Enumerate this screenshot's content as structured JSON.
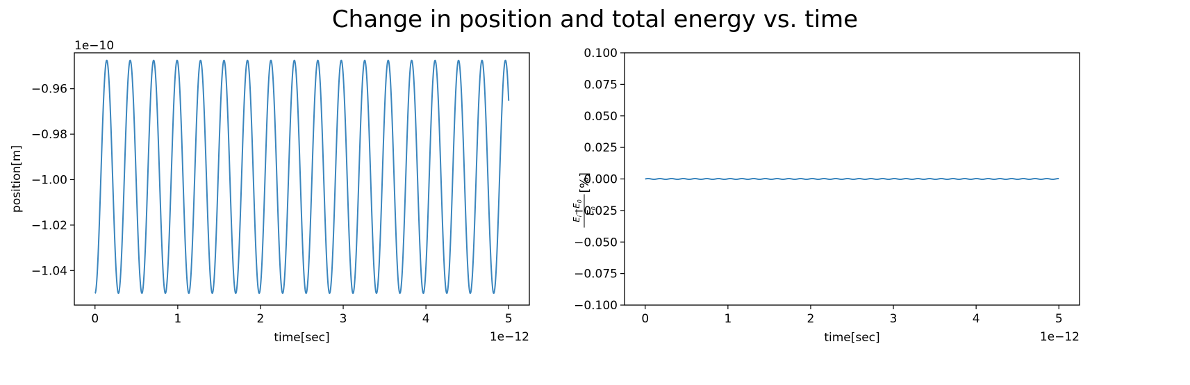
{
  "figure": {
    "title": "Change in position and total energy vs. time"
  },
  "chart_data": [
    {
      "type": "line",
      "title": "",
      "xlabel": "time[sec]",
      "ylabel": "position[m]",
      "x_offset_label": "1e−12",
      "y_offset_label": "1e−10",
      "xlim": [
        -0.25,
        5.25
      ],
      "ylim": [
        -1.0552,
        -0.9442
      ],
      "xticks": [
        0,
        1,
        2,
        3,
        4,
        5
      ],
      "xtick_labels": [
        "0",
        "1",
        "2",
        "3",
        "4",
        "5"
      ],
      "yticks": [
        -1.04,
        -1.02,
        -1.0,
        -0.98,
        -0.96
      ],
      "ytick_labels": [
        "−1.04",
        "−1.02",
        "−1.00",
        "−0.98",
        "−0.96"
      ],
      "grid": false,
      "series": [
        {
          "color": "#3b86be",
          "description": "sinusoidal oscillation from -1.050 up to -0.9475 and back, period about 0.2835 (x 1e-12 s), starting at the minimum at t=0 and ending near -0.976 at t=5",
          "function": {
            "center": -0.99875,
            "amplitude": 0.05125,
            "period": 0.2835,
            "phase": "minimum-at-zero"
          },
          "x_range": [
            0,
            5
          ]
        }
      ]
    },
    {
      "type": "line",
      "title": "",
      "xlabel": "time[sec]",
      "ylabel": "[%]",
      "ylabel_math": {
        "numerator": "E",
        "numerator_sub": "i",
        "minus": "−",
        "numerator2": "E",
        "numerator2_sub": "0",
        "denominator": "E",
        "denominator_sub": "0"
      },
      "x_offset_label": "1e−12",
      "xlim": [
        -0.25,
        5.25
      ],
      "ylim": [
        -0.1,
        0.1
      ],
      "xticks": [
        0,
        1,
        2,
        3,
        4,
        5
      ],
      "xtick_labels": [
        "0",
        "1",
        "2",
        "3",
        "4",
        "5"
      ],
      "yticks": [
        -0.1,
        -0.075,
        -0.05,
        -0.025,
        0,
        0.025,
        0.05,
        0.075,
        0.1
      ],
      "ytick_labels": [
        "−0.100",
        "−0.075",
        "−0.050",
        "−0.025",
        "0.000",
        "0.025",
        "0.050",
        "0.075",
        "0.100"
      ],
      "grid": false,
      "series": [
        {
          "color": "#3b86be",
          "description": "nearly constant at 0.000 with tiny ripples (about ±0.0003 %) from t=0 to t=5",
          "function": {
            "center": 0,
            "amplitude": 0.0003,
            "period": 0.14175
          },
          "x_range": [
            0,
            5
          ]
        }
      ]
    }
  ]
}
